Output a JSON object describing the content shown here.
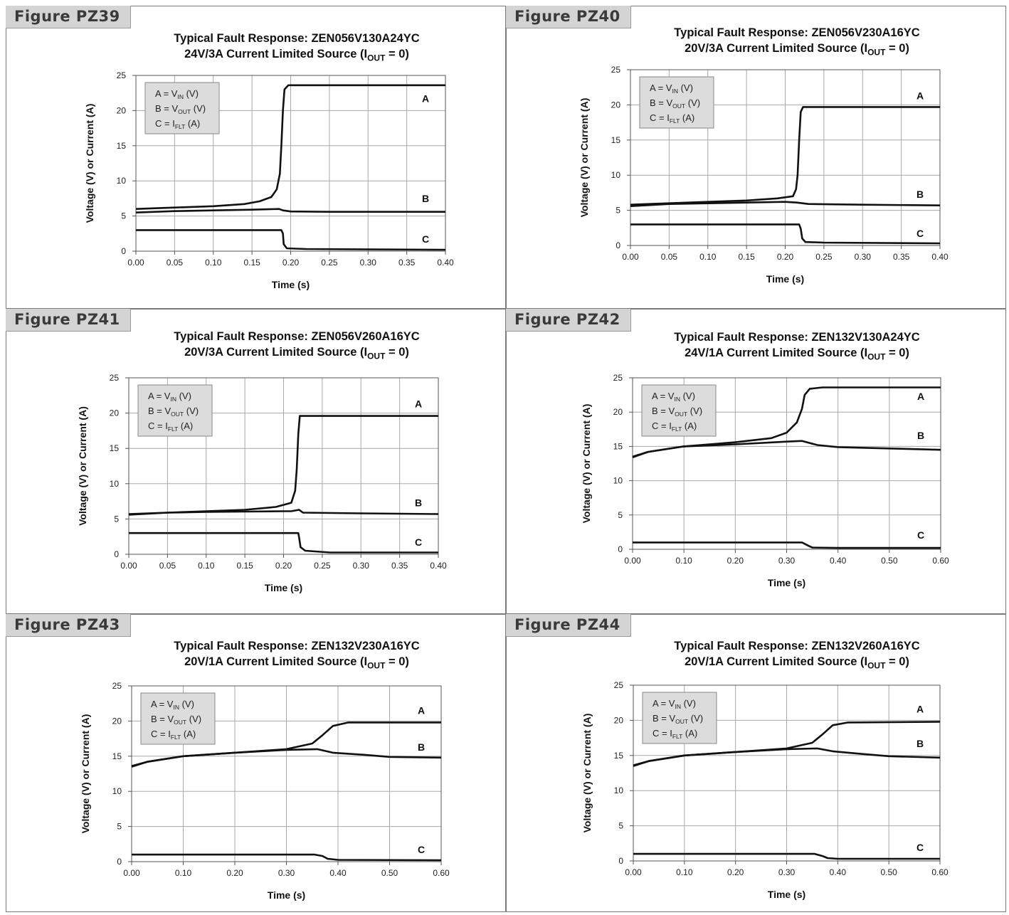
{
  "chart_data": [
    {
      "id": "PZ39",
      "figure_label": "Figure PZ39",
      "type": "line",
      "title_line1": "Typical Fault Response: ZEN056V130A24YC",
      "title_line2_pre": "24V/3A Current Limited Source (I",
      "title_line2_sub": "OUT",
      "title_line2_post": " = 0)",
      "xlabel": "Time (s)",
      "ylabel": "Voltage (V) or Current (A)",
      "xlim": [
        0,
        0.4
      ],
      "ylim": [
        0,
        25
      ],
      "xticks": [
        "0.00",
        "0.05",
        "0.10",
        "0.15",
        "0.20",
        "0.25",
        "0.30",
        "0.35",
        "0.40"
      ],
      "yticks": [
        "0",
        "5",
        "10",
        "15",
        "20",
        "25"
      ],
      "grid": true,
      "legend_position": "top-left",
      "legend": [
        {
          "pre": "A = V",
          "sub": "IN",
          "post": " (V)"
        },
        {
          "pre": "B = V",
          "sub": "OUT",
          "post": " (V)"
        },
        {
          "pre": "C = I",
          "sub": "FLT",
          "post": " (A)"
        }
      ],
      "series": [
        {
          "name": "A",
          "label_y": 21.7,
          "points": [
            [
              0,
              6.0
            ],
            [
              0.05,
              6.2
            ],
            [
              0.1,
              6.4
            ],
            [
              0.14,
              6.7
            ],
            [
              0.16,
              7.1
            ],
            [
              0.175,
              7.7
            ],
            [
              0.182,
              8.8
            ],
            [
              0.186,
              11
            ],
            [
              0.188,
              15
            ],
            [
              0.19,
              20
            ],
            [
              0.192,
              23.0
            ],
            [
              0.197,
              23.6
            ],
            [
              0.4,
              23.6
            ]
          ]
        },
        {
          "name": "B",
          "label_y": 7.5,
          "points": [
            [
              0,
              5.5
            ],
            [
              0.05,
              5.7
            ],
            [
              0.1,
              5.8
            ],
            [
              0.15,
              5.9
            ],
            [
              0.185,
              6.0
            ],
            [
              0.19,
              5.8
            ],
            [
              0.2,
              5.65
            ],
            [
              0.25,
              5.6
            ],
            [
              0.4,
              5.6
            ]
          ]
        },
        {
          "name": "C",
          "label_y": 1.7,
          "points": [
            [
              0,
              3.0
            ],
            [
              0.188,
              3.0
            ],
            [
              0.19,
              2.5
            ],
            [
              0.191,
              1.0
            ],
            [
              0.195,
              0.4
            ],
            [
              0.22,
              0.3
            ],
            [
              0.4,
              0.2
            ]
          ]
        }
      ]
    },
    {
      "id": "PZ40",
      "figure_label": "Figure PZ40",
      "type": "line",
      "title_line1": "Typical Fault Response: ZEN056V230A16YC",
      "title_line2_pre": "20V/3A Current Limited Source (I",
      "title_line2_sub": "OUT",
      "title_line2_post": " = 0)",
      "xlabel": "Time (s)",
      "ylabel": "Voltage (V) or Current (A)",
      "xlim": [
        0,
        0.4
      ],
      "ylim": [
        0,
        25
      ],
      "xticks": [
        "0.00",
        "0.05",
        "0.10",
        "0.15",
        "0.20",
        "0.25",
        "0.30",
        "0.35",
        "0.40"
      ],
      "yticks": [
        "0",
        "5",
        "10",
        "15",
        "20",
        "25"
      ],
      "grid": true,
      "legend_position": "top-left",
      "legend": [
        {
          "pre": "A = V",
          "sub": "IN",
          "post": " (V)"
        },
        {
          "pre": "B = V",
          "sub": "OUT",
          "post": " (V)"
        },
        {
          "pre": "C = I",
          "sub": "FLT",
          "post": " (A)"
        }
      ],
      "series": [
        {
          "name": "A",
          "label_y": 21.3,
          "points": [
            [
              0,
              5.8
            ],
            [
              0.05,
              6.0
            ],
            [
              0.1,
              6.2
            ],
            [
              0.15,
              6.4
            ],
            [
              0.19,
              6.7
            ],
            [
              0.21,
              7.0
            ],
            [
              0.214,
              8.0
            ],
            [
              0.216,
              10
            ],
            [
              0.218,
              15
            ],
            [
              0.22,
              19.0
            ],
            [
              0.223,
              19.7
            ],
            [
              0.4,
              19.7
            ]
          ]
        },
        {
          "name": "B",
          "label_y": 7.3,
          "points": [
            [
              0,
              5.6
            ],
            [
              0.05,
              5.9
            ],
            [
              0.1,
              6.0
            ],
            [
              0.15,
              6.1
            ],
            [
              0.2,
              6.2
            ],
            [
              0.215,
              6.1
            ],
            [
              0.23,
              5.9
            ],
            [
              0.3,
              5.8
            ],
            [
              0.4,
              5.7
            ]
          ]
        },
        {
          "name": "C",
          "label_y": 1.7,
          "points": [
            [
              0,
              3.0
            ],
            [
              0.218,
              3.0
            ],
            [
              0.22,
              2.4
            ],
            [
              0.222,
              1.0
            ],
            [
              0.226,
              0.5
            ],
            [
              0.25,
              0.4
            ],
            [
              0.4,
              0.3
            ]
          ]
        }
      ]
    },
    {
      "id": "PZ41",
      "figure_label": "Figure PZ41",
      "type": "line",
      "title_line1": "Typical Fault Response: ZEN056V260A16YC",
      "title_line2_pre": "20V/3A Current Limited Source (I",
      "title_line2_sub": "OUT",
      "title_line2_post": " = 0)",
      "xlabel": "Time (s)",
      "ylabel": "Voltage (V) or Current (A)",
      "xlim": [
        0,
        0.4
      ],
      "ylim": [
        0,
        25
      ],
      "xticks": [
        "0.00",
        "0.05",
        "0.10",
        "0.15",
        "0.20",
        "0.25",
        "0.30",
        "0.35",
        "0.40"
      ],
      "yticks": [
        "0",
        "5",
        "10",
        "15",
        "20",
        "25"
      ],
      "grid": true,
      "legend_position": "top-left",
      "legend": [
        {
          "pre": "A = V",
          "sub": "IN",
          "post": " (V)"
        },
        {
          "pre": "B = V",
          "sub": "OUT",
          "post": " (V)"
        },
        {
          "pre": "C = I",
          "sub": "FLT",
          "post": " (A)"
        }
      ],
      "series": [
        {
          "name": "A",
          "label_y": 21.3,
          "points": [
            [
              0,
              5.7
            ],
            [
              0.05,
              5.9
            ],
            [
              0.1,
              6.1
            ],
            [
              0.15,
              6.3
            ],
            [
              0.19,
              6.7
            ],
            [
              0.21,
              7.3
            ],
            [
              0.215,
              9
            ],
            [
              0.217,
              12
            ],
            [
              0.219,
              17
            ],
            [
              0.221,
              19.6
            ],
            [
              0.4,
              19.6
            ]
          ]
        },
        {
          "name": "B",
          "label_y": 7.3,
          "points": [
            [
              0,
              5.6
            ],
            [
              0.05,
              5.9
            ],
            [
              0.1,
              6.0
            ],
            [
              0.15,
              6.05
            ],
            [
              0.2,
              6.1
            ],
            [
              0.21,
              6.1
            ],
            [
              0.22,
              6.3
            ],
            [
              0.225,
              5.9
            ],
            [
              0.3,
              5.8
            ],
            [
              0.4,
              5.7
            ]
          ]
        },
        {
          "name": "C",
          "label_y": 1.7,
          "points": [
            [
              0,
              3.0
            ],
            [
              0.219,
              3.0
            ],
            [
              0.22,
              2.4
            ],
            [
              0.222,
              1.0
            ],
            [
              0.228,
              0.5
            ],
            [
              0.26,
              0.25
            ],
            [
              0.4,
              0.25
            ]
          ]
        }
      ]
    },
    {
      "id": "PZ42",
      "figure_label": "Figure PZ42",
      "type": "line",
      "title_line1": "Typical Fault Response: ZEN132V130A24YC",
      "title_line2_pre": "24V/1A Current Limited Source (I",
      "title_line2_sub": "OUT",
      "title_line2_post": " = 0)",
      "xlabel": "Time (s)",
      "ylabel": "Voltage (V) or Current (A)",
      "xlim": [
        0,
        0.6
      ],
      "ylim": [
        0,
        25
      ],
      "xticks": [
        "0.00",
        "0.10",
        "0.20",
        "0.30",
        "0.40",
        "0.50",
        "0.60"
      ],
      "yticks": [
        "0",
        "5",
        "10",
        "15",
        "20",
        "25"
      ],
      "grid": true,
      "legend_position": "top-left",
      "legend": [
        {
          "pre": "A = V",
          "sub": "IN",
          "post": " (V)"
        },
        {
          "pre": "B = V",
          "sub": "OUT",
          "post": " (V)"
        },
        {
          "pre": "C = I",
          "sub": "FLT",
          "post": " (A)"
        }
      ],
      "series": [
        {
          "name": "A",
          "label_y": 22.3,
          "points": [
            [
              0,
              13.5
            ],
            [
              0.03,
              14.2
            ],
            [
              0.1,
              15.0
            ],
            [
              0.2,
              15.6
            ],
            [
              0.27,
              16.2
            ],
            [
              0.3,
              17.0
            ],
            [
              0.32,
              18.5
            ],
            [
              0.33,
              20.5
            ],
            [
              0.335,
              22.5
            ],
            [
              0.345,
              23.4
            ],
            [
              0.37,
              23.6
            ],
            [
              0.6,
              23.6
            ]
          ]
        },
        {
          "name": "B",
          "label_y": 16.6,
          "points": [
            [
              0,
              13.4
            ],
            [
              0.03,
              14.2
            ],
            [
              0.1,
              15.0
            ],
            [
              0.2,
              15.3
            ],
            [
              0.3,
              15.7
            ],
            [
              0.33,
              15.8
            ],
            [
              0.36,
              15.2
            ],
            [
              0.4,
              14.9
            ],
            [
              0.5,
              14.7
            ],
            [
              0.6,
              14.5
            ]
          ]
        },
        {
          "name": "C",
          "label_y": 2.1,
          "points": [
            [
              0,
              1.0
            ],
            [
              0.33,
              1.0
            ],
            [
              0.34,
              0.6
            ],
            [
              0.35,
              0.25
            ],
            [
              0.4,
              0.2
            ],
            [
              0.6,
              0.2
            ]
          ]
        }
      ]
    },
    {
      "id": "PZ43",
      "figure_label": "Figure PZ43",
      "type": "line",
      "title_line1": "Typical Fault Response: ZEN132V230A16YC",
      "title_line2_pre": "20V/1A Current Limited Source (I",
      "title_line2_sub": "OUT",
      "title_line2_post": " = 0)",
      "xlabel": "Time (s)",
      "ylabel": "Voltage (V) or Current (A)",
      "xlim": [
        0,
        0.6
      ],
      "ylim": [
        0,
        25
      ],
      "xticks": [
        "0.00",
        "0.10",
        "0.20",
        "0.30",
        "0.40",
        "0.50",
        "0.60"
      ],
      "yticks": [
        "0",
        "5",
        "10",
        "15",
        "20",
        "25"
      ],
      "grid": true,
      "legend_position": "top-left",
      "legend": [
        {
          "pre": "A = V",
          "sub": "IN",
          "post": " (V)"
        },
        {
          "pre": "B = V",
          "sub": "OUT",
          "post": " (V)"
        },
        {
          "pre": "C = I",
          "sub": "FLT",
          "post": " (A)"
        }
      ],
      "series": [
        {
          "name": "A",
          "label_y": 21.5,
          "points": [
            [
              0,
              13.6
            ],
            [
              0.03,
              14.2
            ],
            [
              0.1,
              15.0
            ],
            [
              0.2,
              15.5
            ],
            [
              0.3,
              16.0
            ],
            [
              0.35,
              16.8
            ],
            [
              0.37,
              18.0
            ],
            [
              0.39,
              19.3
            ],
            [
              0.42,
              19.8
            ],
            [
              0.6,
              19.8
            ]
          ]
        },
        {
          "name": "B",
          "label_y": 16.3,
          "points": [
            [
              0,
              13.5
            ],
            [
              0.03,
              14.2
            ],
            [
              0.1,
              15.0
            ],
            [
              0.2,
              15.5
            ],
            [
              0.3,
              15.9
            ],
            [
              0.36,
              16.0
            ],
            [
              0.39,
              15.5
            ],
            [
              0.45,
              15.2
            ],
            [
              0.5,
              14.9
            ],
            [
              0.6,
              14.8
            ]
          ]
        },
        {
          "name": "C",
          "label_y": 1.7,
          "points": [
            [
              0,
              1.0
            ],
            [
              0.355,
              1.0
            ],
            [
              0.37,
              0.8
            ],
            [
              0.38,
              0.4
            ],
            [
              0.4,
              0.25
            ],
            [
              0.6,
              0.2
            ]
          ]
        }
      ]
    },
    {
      "id": "PZ44",
      "figure_label": "Figure PZ44",
      "type": "line",
      "title_line1": "Typical Fault Response: ZEN132V260A16YC",
      "title_line2_pre": "20V/1A Current Limited Source (I",
      "title_line2_sub": "OUT",
      "title_line2_post": " = 0)",
      "xlabel": "Time (s)",
      "ylabel": "Voltage (V) or Current (A)",
      "xlim": [
        0,
        0.6
      ],
      "ylim": [
        0,
        25
      ],
      "xticks": [
        "0.00",
        "0.10",
        "0.20",
        "0.30",
        "0.40",
        "0.50",
        "0.60"
      ],
      "yticks": [
        "0",
        "5",
        "10",
        "15",
        "20",
        "25"
      ],
      "grid": true,
      "legend_position": "top-left",
      "legend": [
        {
          "pre": "A = V",
          "sub": "IN",
          "post": " (V)"
        },
        {
          "pre": "B = V",
          "sub": "OUT",
          "post": " (V)"
        },
        {
          "pre": "C = I",
          "sub": "FLT",
          "post": " (A)"
        }
      ],
      "series": [
        {
          "name": "A",
          "label_y": 21.6,
          "points": [
            [
              0,
              13.6
            ],
            [
              0.03,
              14.2
            ],
            [
              0.1,
              15.0
            ],
            [
              0.2,
              15.5
            ],
            [
              0.3,
              16.0
            ],
            [
              0.35,
              16.8
            ],
            [
              0.37,
              18.0
            ],
            [
              0.39,
              19.3
            ],
            [
              0.42,
              19.7
            ],
            [
              0.6,
              19.8
            ]
          ]
        },
        {
          "name": "B",
          "label_y": 16.7,
          "points": [
            [
              0,
              13.5
            ],
            [
              0.03,
              14.2
            ],
            [
              0.1,
              15.0
            ],
            [
              0.2,
              15.5
            ],
            [
              0.3,
              15.9
            ],
            [
              0.36,
              16.0
            ],
            [
              0.39,
              15.6
            ],
            [
              0.45,
              15.2
            ],
            [
              0.5,
              14.9
            ],
            [
              0.6,
              14.7
            ]
          ]
        },
        {
          "name": "C",
          "label_y": 1.9,
          "points": [
            [
              0,
              1.0
            ],
            [
              0.355,
              1.0
            ],
            [
              0.37,
              0.7
            ],
            [
              0.38,
              0.4
            ],
            [
              0.4,
              0.3
            ],
            [
              0.6,
              0.3
            ]
          ]
        }
      ]
    }
  ]
}
